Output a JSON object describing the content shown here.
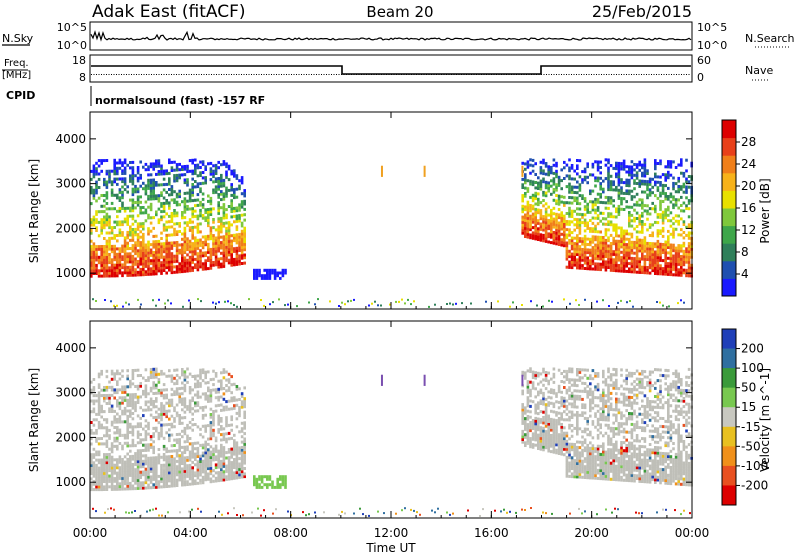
{
  "header": {
    "station": "Adak East (fitACF)",
    "beam": "Beam 20",
    "date": "25/Feb/2015"
  },
  "status": {
    "nsky_label": "N.Sky",
    "nsearch_label": "N.Search",
    "freq_label_1": "Freq.",
    "freq_label_2": "[MHz]",
    "nave_label": "Nave",
    "cpid_label": "CPID",
    "cpid_value": "normalsound (fast) -157 RF",
    "nsky_ticks": [
      "10^5",
      "10^0"
    ],
    "nsearch_ticks": [
      "10^5",
      "10^0"
    ],
    "freq_ticks": [
      "18",
      "8"
    ],
    "nave_ticks": [
      "60",
      "0"
    ]
  },
  "xaxis": {
    "label": "Time UT",
    "ticks": [
      "00:00",
      "04:00",
      "08:00",
      "12:00",
      "16:00",
      "20:00",
      "00:00"
    ],
    "range_hours": [
      0,
      24
    ]
  },
  "colors": {
    "power": [
      "#1a1aff",
      "#1f4fb0",
      "#2f7f5a",
      "#3ea64a",
      "#7fc83c",
      "#e8e000",
      "#f7b21a",
      "#f07f1a",
      "#e8401a",
      "#dd0000"
    ],
    "velocity": [
      "#1f3fb8",
      "#2f6fa0",
      "#3a9a3a",
      "#78c850",
      "#c8c8c0",
      "#e8c020",
      "#f0901a",
      "#e85020",
      "#dd0000"
    ],
    "ground_scatter": "#bfbfb8"
  },
  "chart_data": [
    {
      "type": "heatmap",
      "title": "",
      "xlabel": "",
      "ylabel": "Slant Range [km]",
      "ylim": [
        200,
        4600
      ],
      "yticks": [
        "1000",
        "2000",
        "3000",
        "4000"
      ],
      "colorbar": {
        "label": "Power [dB]",
        "ticks": [
          "4",
          "8",
          "12",
          "16",
          "20",
          "24",
          "28"
        ],
        "range": [
          0,
          32
        ]
      },
      "echo_regions": [
        {
          "t_start": 0.0,
          "t_end": 6.2,
          "range_low": 900,
          "range_high": 3500,
          "description": "ionospheric echoes, evening sector"
        },
        {
          "t_start": 6.5,
          "t_end": 7.8,
          "range_low": 850,
          "range_high": 1050,
          "description": "weak patch"
        },
        {
          "t_start": 17.2,
          "t_end": 24.0,
          "range_low": 900,
          "range_high": 3500,
          "description": "ionospheric echoes, morning sector"
        }
      ]
    },
    {
      "type": "heatmap",
      "title": "",
      "xlabel": "Time UT",
      "ylabel": "Slant Range [km]",
      "ylim": [
        200,
        4600
      ],
      "yticks": [
        "1000",
        "2000",
        "3000",
        "4000"
      ],
      "colorbar": {
        "label": "Velocity [m s^-1]",
        "ticks": [
          "200",
          "100",
          "50",
          "15",
          "-15",
          "-50",
          "-100",
          "-200"
        ],
        "range": [
          -250,
          250
        ]
      },
      "echo_regions": [
        {
          "t_start": 0.0,
          "t_end": 6.2,
          "range_low": 800,
          "range_high": 3500,
          "description": "mostly ground scatter (grey)"
        },
        {
          "t_start": 6.5,
          "t_end": 7.8,
          "range_low": 850,
          "range_high": 1150,
          "description": "positive velocity patch (green)"
        },
        {
          "t_start": 17.2,
          "t_end": 24.0,
          "range_low": 900,
          "range_high": 3500,
          "description": "mostly ground scatter (grey)"
        }
      ]
    }
  ]
}
